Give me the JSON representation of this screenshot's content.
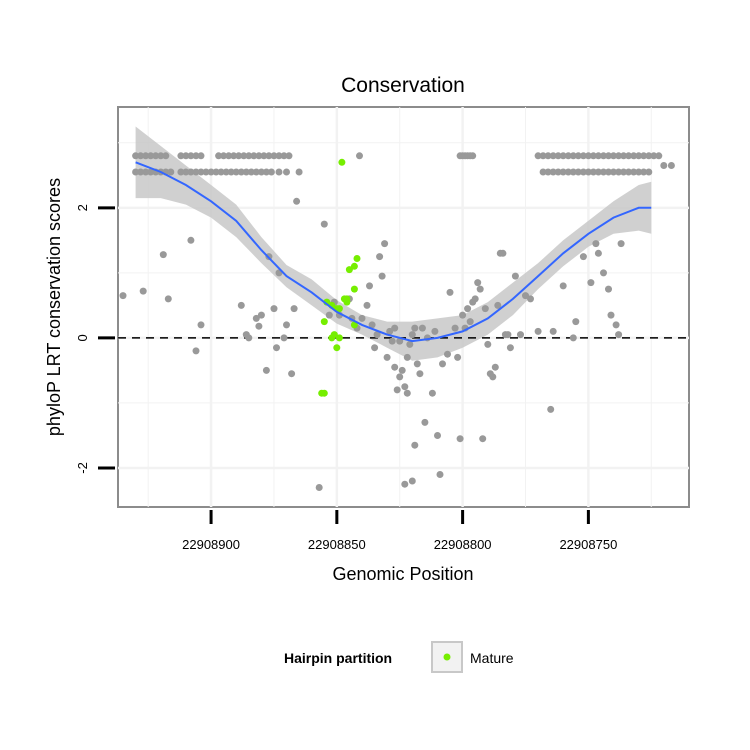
{
  "chart_data": {
    "type": "scatter",
    "title": "Conservation",
    "xlabel": "Genomic Position",
    "ylabel": "phyloP LRT conservation scores",
    "x_reversed": true,
    "xlim": [
      22908937,
      22908710
    ],
    "ylim": [
      -2.6,
      3.55
    ],
    "x_ticks": [
      22908900,
      22908850,
      22908800,
      22908750
    ],
    "x_tick_labels": [
      "22908900",
      "22908850",
      "22908800",
      "22908750"
    ],
    "y_ticks": [
      -2,
      0,
      2
    ],
    "y_tick_labels": [
      "-2",
      "0",
      "2"
    ],
    "reference_line": 0,
    "grid": true,
    "legend": {
      "title": "Hairpin partition",
      "entries": [
        {
          "label": "Mature",
          "color": "#76ee00"
        }
      ]
    },
    "colors": {
      "points": "#999999",
      "mature": "#76ee00",
      "smooth": "#3366ff",
      "ribbon": "#c8c8c8",
      "panel_border": "#8c8c8c",
      "grid": "#f2f2f2"
    },
    "series": [
      {
        "name": "Other",
        "points": [
          [
            22908930,
            2.8
          ],
          [
            22908928,
            2.8
          ],
          [
            22908926,
            2.8
          ],
          [
            22908924,
            2.8
          ],
          [
            22908922,
            2.8
          ],
          [
            22908920,
            2.8
          ],
          [
            22908918,
            2.8
          ],
          [
            22908930,
            2.55
          ],
          [
            22908928,
            2.55
          ],
          [
            22908926,
            2.55
          ],
          [
            22908924,
            2.55
          ],
          [
            22908922,
            2.55
          ],
          [
            22908920,
            2.55
          ],
          [
            22908918,
            2.55
          ],
          [
            22908916,
            2.55
          ],
          [
            22908912,
            2.8
          ],
          [
            22908910,
            2.8
          ],
          [
            22908908,
            2.8
          ],
          [
            22908906,
            2.8
          ],
          [
            22908904,
            2.8
          ],
          [
            22908912,
            2.55
          ],
          [
            22908910,
            2.55
          ],
          [
            22908908,
            2.55
          ],
          [
            22908906,
            2.55
          ],
          [
            22908904,
            2.55
          ],
          [
            22908902,
            2.55
          ],
          [
            22908900,
            2.55
          ],
          [
            22908897,
            2.8
          ],
          [
            22908895,
            2.8
          ],
          [
            22908893,
            2.8
          ],
          [
            22908891,
            2.8
          ],
          [
            22908889,
            2.8
          ],
          [
            22908887,
            2.8
          ],
          [
            22908885,
            2.8
          ],
          [
            22908883,
            2.8
          ],
          [
            22908881,
            2.8
          ],
          [
            22908879,
            2.8
          ],
          [
            22908877,
            2.8
          ],
          [
            22908875,
            2.8
          ],
          [
            22908873,
            2.8
          ],
          [
            22908871,
            2.8
          ],
          [
            22908869,
            2.8
          ],
          [
            22908898,
            2.55
          ],
          [
            22908896,
            2.55
          ],
          [
            22908894,
            2.55
          ],
          [
            22908892,
            2.55
          ],
          [
            22908890,
            2.55
          ],
          [
            22908888,
            2.55
          ],
          [
            22908886,
            2.55
          ],
          [
            22908884,
            2.55
          ],
          [
            22908882,
            2.55
          ],
          [
            22908880,
            2.55
          ],
          [
            22908878,
            2.55
          ],
          [
            22908876,
            2.55
          ],
          [
            22908873,
            2.55
          ],
          [
            22908870,
            2.55
          ],
          [
            22908865,
            2.55
          ],
          [
            22908841,
            2.8
          ],
          [
            22908801,
            2.8
          ],
          [
            22908800,
            2.8
          ],
          [
            22908799,
            2.8
          ],
          [
            22908798,
            2.8
          ],
          [
            22908797,
            2.8
          ],
          [
            22908796,
            2.8
          ],
          [
            22908770,
            2.8
          ],
          [
            22908768,
            2.8
          ],
          [
            22908766,
            2.8
          ],
          [
            22908764,
            2.8
          ],
          [
            22908762,
            2.8
          ],
          [
            22908760,
            2.8
          ],
          [
            22908758,
            2.8
          ],
          [
            22908756,
            2.8
          ],
          [
            22908754,
            2.8
          ],
          [
            22908752,
            2.8
          ],
          [
            22908750,
            2.8
          ],
          [
            22908748,
            2.8
          ],
          [
            22908746,
            2.8
          ],
          [
            22908744,
            2.8
          ],
          [
            22908742,
            2.8
          ],
          [
            22908740,
            2.8
          ],
          [
            22908738,
            2.8
          ],
          [
            22908736,
            2.8
          ],
          [
            22908734,
            2.8
          ],
          [
            22908732,
            2.8
          ],
          [
            22908730,
            2.8
          ],
          [
            22908728,
            2.8
          ],
          [
            22908726,
            2.8
          ],
          [
            22908724,
            2.8
          ],
          [
            22908722,
            2.8
          ],
          [
            22908768,
            2.55
          ],
          [
            22908766,
            2.55
          ],
          [
            22908764,
            2.55
          ],
          [
            22908762,
            2.55
          ],
          [
            22908760,
            2.55
          ],
          [
            22908758,
            2.55
          ],
          [
            22908756,
            2.55
          ],
          [
            22908754,
            2.55
          ],
          [
            22908752,
            2.55
          ],
          [
            22908750,
            2.55
          ],
          [
            22908748,
            2.55
          ],
          [
            22908746,
            2.55
          ],
          [
            22908744,
            2.55
          ],
          [
            22908742,
            2.55
          ],
          [
            22908740,
            2.55
          ],
          [
            22908738,
            2.55
          ],
          [
            22908736,
            2.55
          ],
          [
            22908734,
            2.55
          ],
          [
            22908732,
            2.55
          ],
          [
            22908730,
            2.55
          ],
          [
            22908728,
            2.55
          ],
          [
            22908726,
            2.55
          ],
          [
            22908720,
            2.65
          ],
          [
            22908717,
            2.65
          ],
          [
            22908935,
            0.65
          ],
          [
            22908927,
            0.72
          ],
          [
            22908919,
            1.28
          ],
          [
            22908917,
            0.6
          ],
          [
            22908908,
            1.5
          ],
          [
            22908906,
            -0.2
          ],
          [
            22908904,
            0.2
          ],
          [
            22908866,
            2.1
          ],
          [
            22908867,
            0.45
          ],
          [
            22908868,
            -0.55
          ],
          [
            22908870,
            0.2
          ],
          [
            22908871,
            0.0
          ],
          [
            22908873,
            1.0
          ],
          [
            22908874,
            -0.15
          ],
          [
            22908875,
            0.45
          ],
          [
            22908877,
            1.25
          ],
          [
            22908878,
            -0.5
          ],
          [
            22908880,
            0.35
          ],
          [
            22908881,
            0.18
          ],
          [
            22908882,
            0.3
          ],
          [
            22908885,
            0.0
          ],
          [
            22908886,
            0.05
          ],
          [
            22908888,
            0.5
          ],
          [
            22908855,
            1.75
          ],
          [
            22908857,
            -2.3
          ],
          [
            22908853,
            0.35
          ],
          [
            22908851,
            0.55
          ],
          [
            22908849,
            0.35
          ],
          [
            22908845,
            0.6
          ],
          [
            22908844,
            0.3
          ],
          [
            22908842,
            0.15
          ],
          [
            22908840,
            0.3
          ],
          [
            22908838,
            0.5
          ],
          [
            22908837,
            0.8
          ],
          [
            22908836,
            0.2
          ],
          [
            22908835,
            -0.15
          ],
          [
            22908834,
            0.05
          ],
          [
            22908833,
            1.25
          ],
          [
            22908832,
            0.95
          ],
          [
            22908831,
            1.45
          ],
          [
            22908830,
            -0.3
          ],
          [
            22908829,
            0.1
          ],
          [
            22908828,
            -0.05
          ],
          [
            22908827,
            -0.45
          ],
          [
            22908826,
            -0.8
          ],
          [
            22908825,
            -0.6
          ],
          [
            22908824,
            -0.5
          ],
          [
            22908823,
            -0.75
          ],
          [
            22908822,
            -0.3
          ],
          [
            22908821,
            -0.1
          ],
          [
            22908820,
            0.05
          ],
          [
            22908819,
            0.15
          ],
          [
            22908827,
            0.15
          ],
          [
            22908825,
            -0.05
          ],
          [
            22908823,
            -2.25
          ],
          [
            22908822,
            -0.85
          ],
          [
            22908820,
            -2.2
          ],
          [
            22908819,
            -1.65
          ],
          [
            22908818,
            -0.4
          ],
          [
            22908817,
            -0.55
          ],
          [
            22908816,
            0.15
          ],
          [
            22908815,
            -1.3
          ],
          [
            22908814,
            0.0
          ],
          [
            22908812,
            -0.85
          ],
          [
            22908811,
            0.1
          ],
          [
            22908810,
            -1.5
          ],
          [
            22908809,
            -2.1
          ],
          [
            22908808,
            -0.4
          ],
          [
            22908806,
            -0.25
          ],
          [
            22908805,
            0.7
          ],
          [
            22908803,
            0.15
          ],
          [
            22908802,
            -0.3
          ],
          [
            22908801,
            -1.55
          ],
          [
            22908800,
            0.35
          ],
          [
            22908799,
            0.15
          ],
          [
            22908798,
            0.45
          ],
          [
            22908797,
            0.25
          ],
          [
            22908796,
            0.55
          ],
          [
            22908795,
            0.6
          ],
          [
            22908794,
            0.85
          ],
          [
            22908793,
            0.75
          ],
          [
            22908792,
            -1.55
          ],
          [
            22908791,
            0.45
          ],
          [
            22908790,
            -0.1
          ],
          [
            22908789,
            -0.55
          ],
          [
            22908788,
            -0.6
          ],
          [
            22908787,
            -0.45
          ],
          [
            22908786,
            0.5
          ],
          [
            22908785,
            1.3
          ],
          [
            22908784,
            1.3
          ],
          [
            22908783,
            0.05
          ],
          [
            22908782,
            0.05
          ],
          [
            22908781,
            -0.15
          ],
          [
            22908779,
            0.95
          ],
          [
            22908777,
            0.05
          ],
          [
            22908775,
            0.65
          ],
          [
            22908773,
            0.6
          ],
          [
            22908770,
            0.1
          ],
          [
            22908765,
            -1.1
          ],
          [
            22908764,
            0.1
          ],
          [
            22908760,
            0.8
          ],
          [
            22908756,
            -0.0
          ],
          [
            22908755,
            0.25
          ],
          [
            22908752,
            1.25
          ],
          [
            22908749,
            0.85
          ],
          [
            22908747,
            1.45
          ],
          [
            22908746,
            1.3
          ],
          [
            22908744,
            1.0
          ],
          [
            22908742,
            0.75
          ],
          [
            22908741,
            0.35
          ],
          [
            22908739,
            0.2
          ],
          [
            22908738,
            0.05
          ],
          [
            22908737,
            1.45
          ]
        ]
      },
      {
        "name": "Mature",
        "points": [
          [
            22908848,
            2.7
          ],
          [
            22908845,
            1.05
          ],
          [
            22908843,
            1.1
          ],
          [
            22908842,
            1.22
          ],
          [
            22908846,
            0.55
          ],
          [
            22908847,
            0.6
          ],
          [
            22908843,
            0.75
          ],
          [
            22908854,
            0.55
          ],
          [
            22908852,
            0.5
          ],
          [
            22908850,
            0.45
          ],
          [
            22908849,
            0.45
          ],
          [
            22908855,
            0.25
          ],
          [
            22908843,
            0.2
          ],
          [
            22908846,
            0.6
          ],
          [
            22908852,
            0.0
          ],
          [
            22908849,
            0.0
          ],
          [
            22908851,
            0.05
          ],
          [
            22908850,
            -0.15
          ],
          [
            22908856,
            -0.85
          ],
          [
            22908855,
            -0.85
          ]
        ]
      }
    ],
    "smooth": {
      "x": [
        22908930,
        22908920,
        22908910,
        22908900,
        22908890,
        22908880,
        22908870,
        22908860,
        22908850,
        22908840,
        22908830,
        22908820,
        22908810,
        22908800,
        22908790,
        22908780,
        22908770,
        22908760,
        22908750,
        22908740,
        22908730,
        22908725
      ],
      "y": [
        2.7,
        2.55,
        2.35,
        2.1,
        1.8,
        1.35,
        0.95,
        0.7,
        0.4,
        0.2,
        0.05,
        -0.05,
        0.0,
        0.1,
        0.3,
        0.6,
        0.95,
        1.3,
        1.6,
        1.85,
        2.0,
        2.0
      ],
      "lower": [
        2.15,
        2.15,
        2.05,
        1.85,
        1.55,
        1.15,
        0.78,
        0.5,
        0.22,
        0.05,
        -0.15,
        -0.35,
        -0.3,
        -0.15,
        0.05,
        0.35,
        0.75,
        1.1,
        1.4,
        1.6,
        1.65,
        1.6
      ],
      "upper": [
        3.25,
        2.95,
        2.65,
        2.35,
        2.05,
        1.55,
        1.12,
        0.9,
        0.58,
        0.35,
        0.25,
        0.25,
        0.3,
        0.35,
        0.55,
        0.85,
        1.15,
        1.5,
        1.8,
        2.1,
        2.35,
        2.4
      ]
    }
  }
}
